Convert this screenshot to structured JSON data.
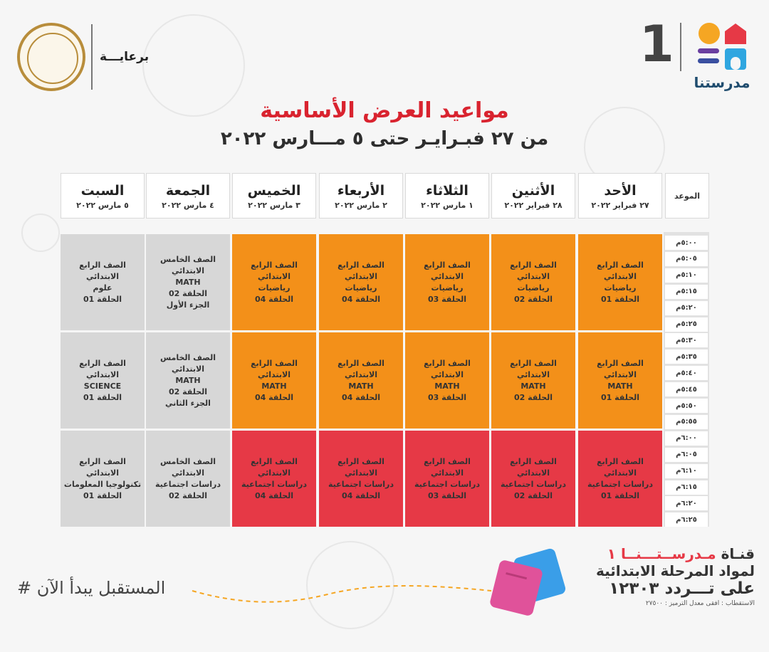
{
  "brand": {
    "logo_text": "مدرستنا",
    "channel_number": "1",
    "sponsor_label": "برعايـــة"
  },
  "title": "مواعيد العرض الأساسية",
  "subtitle": "من ٢٧ فبـرايـر حتى ٥ مـــارس ٢٠٢٢",
  "table": {
    "time_header": "الموعد",
    "days": [
      {
        "name": "الأحد",
        "date": "٢٧ فبراير ٢٠٢٢"
      },
      {
        "name": "الأثنين",
        "date": "٢٨ فبراير ٢٠٢٢"
      },
      {
        "name": "الثلاثاء",
        "date": "١ مارس ٢٠٢٢"
      },
      {
        "name": "الأربعاء",
        "date": "٢ مارس ٢٠٢٢"
      },
      {
        "name": "الخميس",
        "date": "٣ مارس ٢٠٢٢"
      },
      {
        "name": "الجمعة",
        "date": "٤ مارس ٢٠٢٢"
      },
      {
        "name": "السبت",
        "date": "٥ مارس ٢٠٢٢"
      }
    ],
    "times": [
      "٥:٠٠م",
      "٥:٠٥م",
      "٥:١٠م",
      "٥:١٥م",
      "٥:٢٠م",
      "٥:٢٥م",
      "٥:٣٠م",
      "٥:٣٥م",
      "٥:٤٠م",
      "٥:٤٥م",
      "٥:٥٠م",
      "٥:٥٥م",
      "٦:٠٠م",
      "٦:٠٥م",
      "٦:١٠م",
      "٦:١٥م",
      "٦:٢٠م",
      "٦:٢٥م"
    ],
    "blocks": [
      {
        "color": "#f39019",
        "cells": [
          {
            "lines": [
              "الصف الرابع الابتدائي",
              "رياضيات",
              "الحلقة 01"
            ],
            "color": "#f39019"
          },
          {
            "lines": [
              "الصف الرابع الابتدائي",
              "رياضيات",
              "الحلقة 02"
            ],
            "color": "#f39019"
          },
          {
            "lines": [
              "الصف الرابع الابتدائي",
              "رياضيات",
              "الحلقة 03"
            ],
            "color": "#f39019"
          },
          {
            "lines": [
              "الصف الرابع الابتدائي",
              "رياضيات",
              "الحلقة 04"
            ],
            "color": "#f39019"
          },
          {
            "lines": [
              "الصف الرابع الابتدائي",
              "رياضيات",
              "الحلقة 04"
            ],
            "color": "#f39019"
          },
          {
            "lines": [
              "الصف الخامس الابتدائي",
              "MATH",
              "الحلقة 02",
              "الجزء الأول"
            ],
            "color": "#d7d7d7"
          },
          {
            "lines": [
              "الصف الرابع الابتدائي",
              "علوم",
              "الحلقة 01"
            ],
            "color": "#d7d7d7"
          }
        ]
      },
      {
        "color": "#f39019",
        "cells": [
          {
            "lines": [
              "الصف الرابع الابتدائي",
              "MATH",
              "الحلقة 01"
            ],
            "color": "#f39019"
          },
          {
            "lines": [
              "الصف الرابع الابتدائي",
              "MATH",
              "الحلقة 02"
            ],
            "color": "#f39019"
          },
          {
            "lines": [
              "الصف الرابع الابتدائي",
              "MATH",
              "الحلقة 03"
            ],
            "color": "#f39019"
          },
          {
            "lines": [
              "الصف الرابع الابتدائي",
              "MATH",
              "الحلقة 04"
            ],
            "color": "#f39019"
          },
          {
            "lines": [
              "الصف الرابع الابتدائي",
              "MATH",
              "الحلقة 04"
            ],
            "color": "#f39019"
          },
          {
            "lines": [
              "الصف الخامس الابتدائي",
              "MATH",
              "الحلقة 02",
              "الجزء الثاني"
            ],
            "color": "#d7d7d7"
          },
          {
            "lines": [
              "الصف الرابع الابتدائي",
              "SCIENCE",
              "الحلقة 01"
            ],
            "color": "#d7d7d7"
          }
        ]
      },
      {
        "color": "#e63946",
        "cells": [
          {
            "lines": [
              "الصف الرابع الابتدائي",
              "دراسات اجتماعية",
              "الحلقة 01"
            ],
            "color": "#e63946"
          },
          {
            "lines": [
              "الصف الرابع الابتدائي",
              "دراسات اجتماعية",
              "الحلقة 02"
            ],
            "color": "#e63946"
          },
          {
            "lines": [
              "الصف الرابع الابتدائي",
              "دراسات اجتماعية",
              "الحلقة 03"
            ],
            "color": "#e63946"
          },
          {
            "lines": [
              "الصف الرابع الابتدائي",
              "دراسات اجتماعية",
              "الحلقة 04"
            ],
            "color": "#e63946"
          },
          {
            "lines": [
              "الصف الرابع الابتدائي",
              "دراسات اجتماعية",
              "الحلقة 04"
            ],
            "color": "#e63946"
          },
          {
            "lines": [
              "الصف الخامس الابتدائي",
              "دراسات اجتماعية",
              "الحلقة 02"
            ],
            "color": "#d7d7d7"
          },
          {
            "lines": [
              "الصف الرابع الابتدائي",
              "تكنولوجيا المعلومات",
              "الحلقة 01"
            ],
            "color": "#d7d7d7"
          }
        ]
      }
    ]
  },
  "footer": {
    "channel_prefix": "قنـاة ",
    "channel_name": "مـدرســتـــنــا ١",
    "line2": "لمواد المرحلة الابتدائية",
    "line3": "على تـــردد ١٢٣٠٣",
    "line4": "الاستقطاب : افقى معدل الترميز : ٢٧٥٠٠",
    "slogan": "# المستقبل يبدأ الآن"
  },
  "colors": {
    "title_red": "#d9232f",
    "slot_orange": "#f39019",
    "slot_red": "#e63946",
    "slot_grey": "#d7d7d7"
  },
  "icons": [
    "ministry-seal-icon",
    "madrasatona-logo-icon",
    "books-icon"
  ]
}
